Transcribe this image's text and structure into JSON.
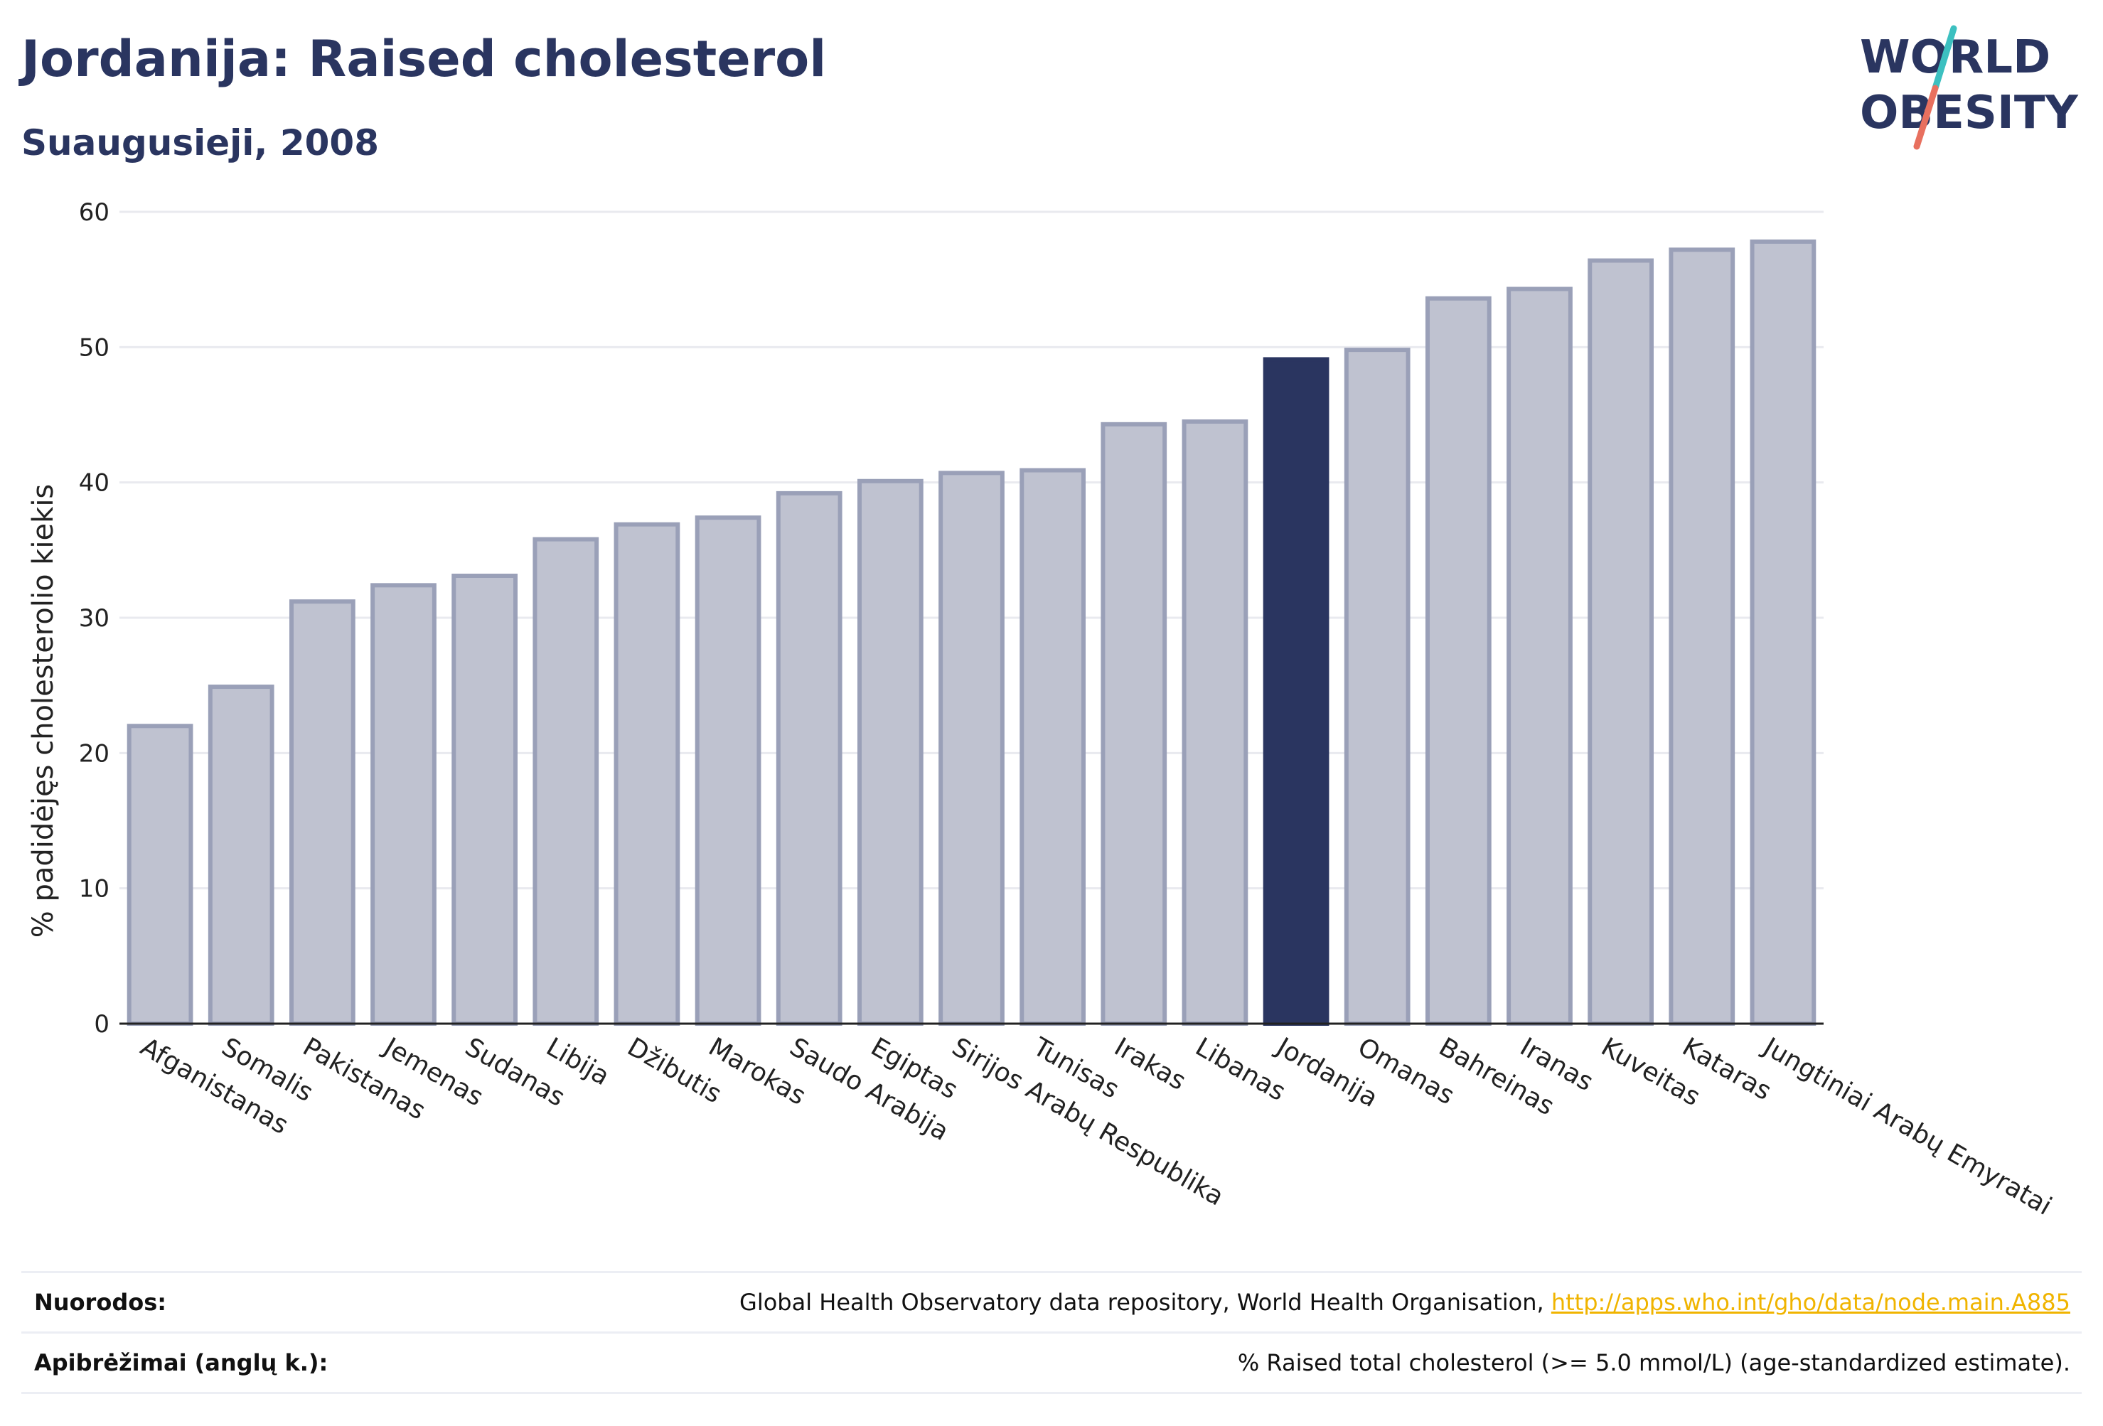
{
  "header": {
    "title": "Jordanija: Raised cholesterol",
    "subtitle": "Suaugusieji, 2008"
  },
  "logo": {
    "line1": "WORLD",
    "line2": "OBESITY"
  },
  "colors": {
    "highlight": "#2a3560",
    "bar_fill": "#bfc2d0",
    "bar_stroke": "#9aa0b8",
    "slash_teal": "#3cc0c0",
    "slash_red": "#e8705f"
  },
  "chart_data": {
    "type": "bar",
    "ylabel": "% padidėjęs cholesterolio kiekis",
    "ylim": [
      0,
      60
    ],
    "yticks": [
      "0",
      "10",
      "20",
      "30",
      "40",
      "50",
      "60"
    ],
    "grid": true,
    "highlight": "Jordanija",
    "categories": [
      "Afganistanas",
      "Somalis",
      "Pakistanas",
      "Jemenas",
      "Sudanas",
      "Libija",
      "Džibutis",
      "Marokas",
      "Saudo Arabija",
      "Egiptas",
      "Sirijos Arabų Respublika",
      "Tunisas",
      "Irakas",
      "Libanas",
      "Jordanija",
      "Omanas",
      "Bahreinas",
      "Iranas",
      "Kuveitas",
      "Kataras",
      "Jungtiniai Arabų Emyratai"
    ],
    "values": [
      22.0,
      24.9,
      31.2,
      32.4,
      33.1,
      35.8,
      36.9,
      37.4,
      39.2,
      40.1,
      40.7,
      40.9,
      44.3,
      44.5,
      49.1,
      49.8,
      53.6,
      54.3,
      56.4,
      57.2,
      57.8
    ]
  },
  "footer": {
    "sources_label": "Nuorodos:",
    "sources_text": "Global Health Observatory data repository, World Health Organisation, ",
    "sources_link": "http://apps.who.int/gho/data/node.main.A885",
    "definitions_label": "Apibrėžimai (anglų k.):",
    "definitions_text": "% Raised total cholesterol (>= 5.0 mmol/L) (age-standardized estimate)."
  }
}
